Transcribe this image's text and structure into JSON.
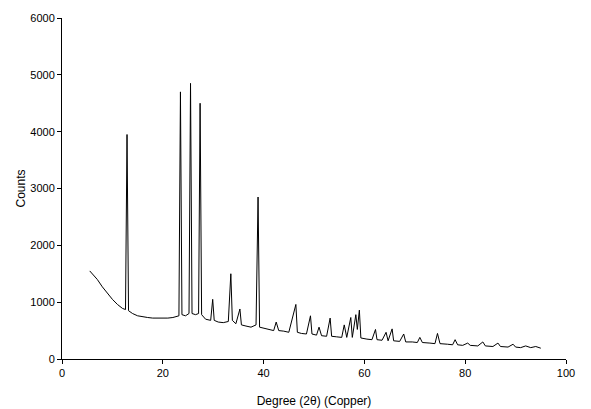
{
  "chart_data": {
    "type": "line",
    "x_label": "Degree (2θ) (Copper)",
    "y_label": "Counts",
    "color": "#000000",
    "grid": false,
    "xlim": [
      0,
      100
    ],
    "ylim": [
      0,
      6000
    ],
    "xticks": [
      0,
      20,
      40,
      60,
      80,
      100
    ],
    "yticks": [
      0,
      1000,
      2000,
      3000,
      4000,
      5000,
      6000
    ],
    "x": [
      5.5,
      6,
      7,
      8,
      9,
      10,
      11,
      12,
      12.6,
      12.9,
      13.2,
      14,
      15,
      16,
      17,
      18,
      19,
      20,
      21,
      22,
      23.2,
      23.5,
      23.8,
      24.5,
      25.2,
      25.5,
      25.8,
      26.5,
      27.1,
      27.4,
      27.7,
      28.5,
      29.5,
      29.9,
      30.2,
      31,
      32,
      33,
      33.5,
      33.8,
      34.5,
      35.3,
      35.6,
      36.5,
      37.5,
      38.5,
      38.9,
      39.2,
      40,
      41,
      42,
      42.5,
      43,
      44,
      45,
      46.4,
      46.7,
      47.5,
      48.5,
      49.3,
      49.6,
      50.5,
      51,
      51.5,
      52.5,
      53.2,
      53.5,
      54.5,
      55.5,
      56,
      56.5,
      57.3,
      57.6,
      58.3,
      58.6,
      59,
      59.3,
      60.5,
      61.5,
      62.2,
      62.5,
      63.5,
      64.3,
      64.7,
      65.5,
      65.8,
      67,
      67.8,
      68.2,
      69.5,
      70.5,
      71,
      71.5,
      73,
      74,
      74.5,
      75,
      76.5,
      77.5,
      78,
      78.5,
      79.5,
      80.5,
      81,
      82.5,
      83.5,
      84,
      85.5,
      86.5,
      87,
      88.5,
      89.5,
      90,
      91,
      92,
      93,
      94,
      95
    ],
    "values": [
      1550,
      1500,
      1400,
      1270,
      1150,
      1050,
      960,
      890,
      870,
      3950,
      850,
      800,
      760,
      740,
      730,
      720,
      720,
      710,
      720,
      730,
      760,
      4700,
      780,
      760,
      800,
      4850,
      800,
      780,
      800,
      4500,
      780,
      700,
      680,
      1050,
      680,
      650,
      640,
      660,
      1500,
      680,
      620,
      880,
      600,
      580,
      560,
      600,
      2850,
      560,
      540,
      520,
      500,
      650,
      500,
      490,
      470,
      960,
      470,
      450,
      440,
      760,
      440,
      420,
      560,
      410,
      400,
      720,
      400,
      390,
      380,
      600,
      380,
      730,
      380,
      780,
      520,
      860,
      370,
      350,
      340,
      520,
      340,
      330,
      470,
      320,
      530,
      320,
      310,
      440,
      300,
      300,
      290,
      380,
      290,
      280,
      270,
      450,
      270,
      260,
      250,
      340,
      250,
      240,
      280,
      240,
      230,
      300,
      230,
      220,
      280,
      220,
      210,
      260,
      210,
      200,
      230,
      200,
      220,
      190
    ]
  }
}
